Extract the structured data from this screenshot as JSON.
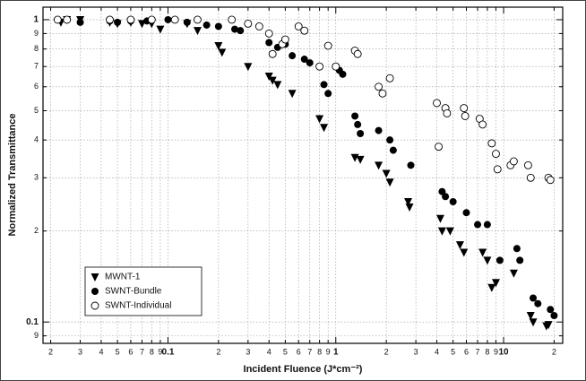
{
  "chart_data": {
    "type": "scatter",
    "x_label": "Incident Fluence (J*cm⁻²)",
    "y_label": "Normalized Transmittance",
    "log_x": true,
    "log_y": true,
    "grid": true,
    "legend": "lower left",
    "xlim": [
      0.018,
      22.5
    ],
    "ylim": [
      0.085,
      1.1
    ],
    "xticks": [
      {
        "value": 0.02,
        "label": "2"
      },
      {
        "value": 0.03,
        "label": "3"
      },
      {
        "value": 0.04,
        "label": "4"
      },
      {
        "value": 0.05,
        "label": "5"
      },
      {
        "value": 0.06,
        "label": "6"
      },
      {
        "value": 0.07,
        "label": "7"
      },
      {
        "value": 0.08,
        "label": "8"
      },
      {
        "value": 0.09,
        "label": "9"
      },
      0.1,
      {
        "value": 0.2,
        "label": "2"
      },
      {
        "value": 0.3,
        "label": "3"
      },
      {
        "value": 0.4,
        "label": "4"
      },
      {
        "value": 0.5,
        "label": "5"
      },
      {
        "value": 0.6,
        "label": "6"
      },
      {
        "value": 0.7,
        "label": "7"
      },
      {
        "value": 0.8,
        "label": "8"
      },
      {
        "value": 0.9,
        "label": "9"
      },
      1,
      {
        "value": 2,
        "label": "2"
      },
      {
        "value": 3,
        "label": "3"
      },
      {
        "value": 4,
        "label": "4"
      },
      {
        "value": 5,
        "label": "5"
      },
      {
        "value": 6,
        "label": "6"
      },
      {
        "value": 7,
        "label": "7"
      },
      {
        "value": 8,
        "label": "8"
      },
      {
        "value": 9,
        "label": "9"
      },
      10,
      {
        "value": 20,
        "label": "2"
      }
    ],
    "yticks": [
      {
        "value": 0.09,
        "label": "9"
      },
      0.1,
      {
        "value": 0.2,
        "label": "2"
      },
      {
        "value": 0.3,
        "label": "3"
      },
      {
        "value": 0.4,
        "label": "4"
      },
      {
        "value": 0.5,
        "label": "5"
      },
      {
        "value": 0.6,
        "label": "6"
      },
      {
        "value": 0.7,
        "label": "7"
      },
      {
        "value": 0.8,
        "label": "8"
      },
      {
        "value": 0.9,
        "label": "9"
      },
      1
    ],
    "series": [
      {
        "name": "MWNT-1",
        "marker": "triangle-down",
        "color": "#000000",
        "x": [
          0.023,
          0.025,
          0.03,
          0.045,
          0.05,
          0.06,
          0.07,
          0.08,
          0.09,
          0.13,
          0.15,
          0.2,
          0.21,
          0.3,
          0.4,
          0.42,
          0.45,
          0.55,
          0.8,
          0.85,
          1.3,
          1.4,
          1.8,
          2.0,
          2.1,
          2.7,
          2.75,
          4.2,
          4.3,
          4.8,
          5.5,
          5.8,
          7.5,
          8.0,
          8.5,
          9.0,
          11.5,
          14.5,
          15,
          18,
          18.5
        ],
        "values": [
          0.98,
          1.0,
          1.0,
          0.98,
          0.97,
          0.98,
          0.97,
          0.97,
          0.93,
          0.97,
          0.92,
          0.82,
          0.78,
          0.7,
          0.65,
          0.63,
          0.61,
          0.57,
          0.47,
          0.44,
          0.35,
          0.345,
          0.33,
          0.31,
          0.29,
          0.25,
          0.24,
          0.22,
          0.2,
          0.2,
          0.18,
          0.17,
          0.17,
          0.16,
          0.13,
          0.135,
          0.145,
          0.105,
          0.1,
          0.097,
          0.098
        ]
      },
      {
        "name": "SWNT-Bundle",
        "marker": "circle",
        "color": "#000000",
        "x": [
          0.025,
          0.03,
          0.045,
          0.05,
          0.06,
          0.075,
          0.1,
          0.13,
          0.17,
          0.2,
          0.25,
          0.27,
          0.4,
          0.45,
          0.5,
          0.55,
          0.65,
          0.7,
          0.85,
          0.9,
          1.05,
          1.1,
          1.3,
          1.35,
          1.4,
          1.8,
          2.1,
          2.2,
          2.8,
          4.3,
          4.5,
          5.0,
          6.0,
          7.0,
          8.0,
          9.5,
          12,
          12.5,
          15,
          16,
          19,
          20
        ],
        "values": [
          1.0,
          0.98,
          0.99,
          0.98,
          0.99,
          0.99,
          1.0,
          0.98,
          0.96,
          0.95,
          0.93,
          0.92,
          0.84,
          0.81,
          0.83,
          0.76,
          0.74,
          0.72,
          0.61,
          0.57,
          0.68,
          0.66,
          0.48,
          0.45,
          0.42,
          0.43,
          0.4,
          0.37,
          0.33,
          0.27,
          0.26,
          0.25,
          0.23,
          0.21,
          0.21,
          0.16,
          0.175,
          0.16,
          0.12,
          0.115,
          0.11,
          0.105
        ]
      },
      {
        "name": "SWNT-Individual",
        "marker": "open-circle",
        "color": "#000000",
        "x": [
          0.022,
          0.025,
          0.045,
          0.06,
          0.08,
          0.11,
          0.15,
          0.24,
          0.3,
          0.35,
          0.4,
          0.42,
          0.48,
          0.5,
          0.6,
          0.65,
          0.8,
          0.9,
          1.0,
          1.3,
          1.35,
          1.8,
          1.9,
          2.1,
          4.0,
          4.1,
          4.5,
          4.6,
          5.8,
          5.9,
          7.2,
          7.5,
          8.5,
          9.0,
          9.2,
          11.0,
          11.5,
          14.0,
          14.5,
          18.5,
          19
        ],
        "values": [
          1.0,
          1.0,
          1.0,
          1.0,
          1.0,
          1.0,
          1.0,
          1.0,
          0.97,
          0.95,
          0.9,
          0.77,
          0.83,
          0.86,
          0.95,
          0.92,
          0.7,
          0.82,
          0.7,
          0.79,
          0.77,
          0.6,
          0.57,
          0.64,
          0.53,
          0.38,
          0.51,
          0.49,
          0.51,
          0.48,
          0.47,
          0.45,
          0.39,
          0.36,
          0.32,
          0.33,
          0.34,
          0.33,
          0.3,
          0.3,
          0.295
        ]
      }
    ]
  }
}
